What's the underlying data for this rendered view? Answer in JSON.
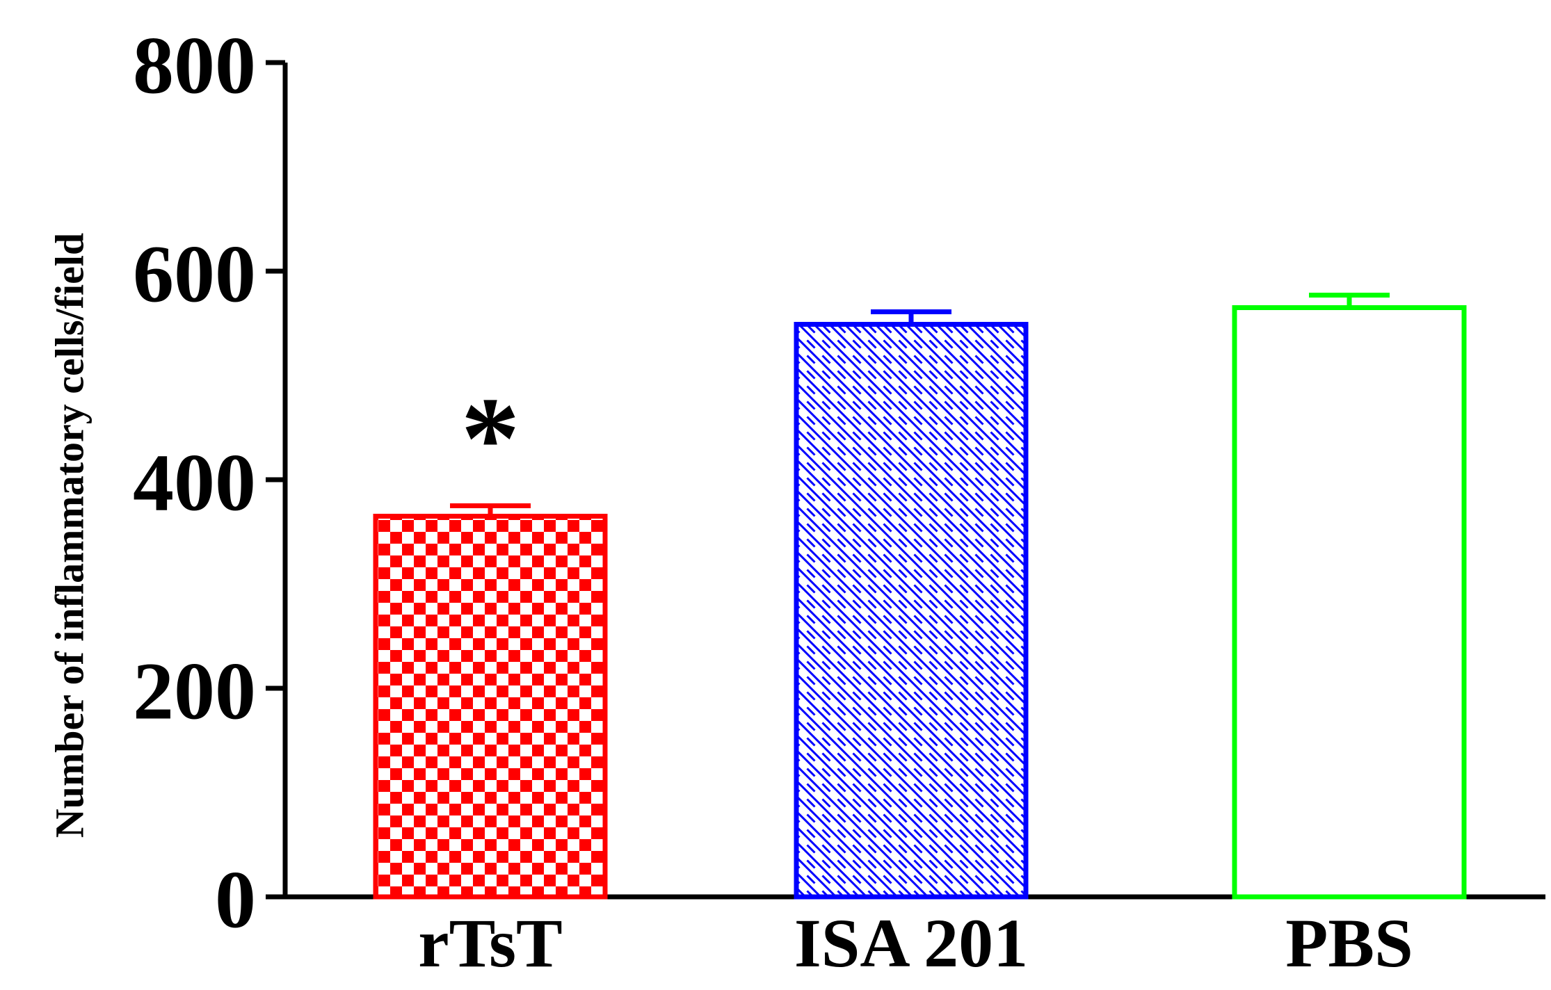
{
  "chart_data": {
    "type": "bar",
    "title": "",
    "xlabel": "",
    "ylabel": "Number of inflammatory cells/field",
    "ylim": [
      0,
      800
    ],
    "yticks": [
      0,
      200,
      400,
      600,
      800
    ],
    "categories": [
      "rTsT",
      "ISA 201",
      "PBS"
    ],
    "values": [
      365,
      549,
      565
    ],
    "errors": [
      10,
      12,
      12
    ],
    "annotations": [
      {
        "category": "rTsT",
        "text": "*"
      }
    ],
    "grid": false,
    "legend": "none",
    "bar_styles": [
      {
        "color": "#ff0000",
        "pattern": "checkerboard"
      },
      {
        "color": "#0000ff",
        "pattern": "diagonal-hatch"
      },
      {
        "color": "#00ff00",
        "pattern": "none"
      }
    ]
  }
}
